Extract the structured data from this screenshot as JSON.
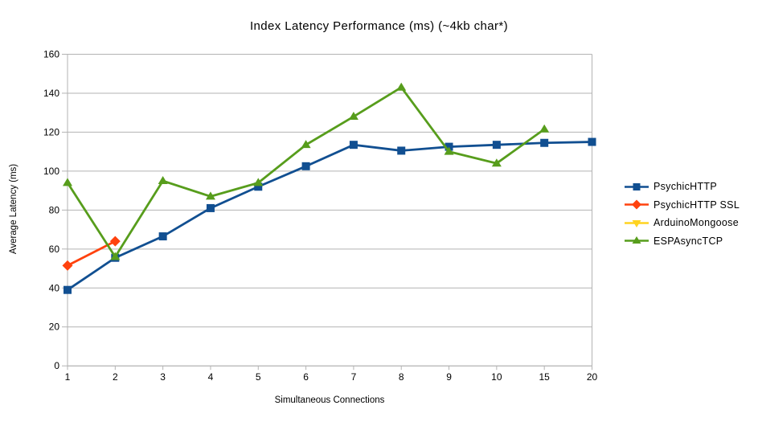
{
  "chart_data": {
    "type": "line",
    "title": "Index Latency Performance (ms) (~4kb char*)",
    "xlabel": "Simultaneous Connections",
    "ylabel": "Average Latency (ms)",
    "categories": [
      "1",
      "2",
      "3",
      "4",
      "5",
      "6",
      "7",
      "8",
      "9",
      "10",
      "15",
      "20"
    ],
    "ylim": [
      0,
      160
    ],
    "ytick_step": 20,
    "yticks": [
      0,
      20,
      40,
      60,
      80,
      100,
      120,
      140,
      160
    ],
    "grid": "horizontal",
    "legend_position": "right",
    "background_color": "#ffffff",
    "axis_color": "#b3b3b3",
    "text_color": "#000000",
    "series": [
      {
        "name": "PsychicHTTP",
        "color": "#114f91",
        "marker": "square",
        "values": [
          39,
          55.5,
          66.5,
          81,
          92,
          102.5,
          113.5,
          110.5,
          112.5,
          113.5,
          114.5,
          115
        ]
      },
      {
        "name": "PsychicHTTP SSL",
        "color": "#ff420e",
        "marker": "diamond",
        "values": [
          51.5,
          64,
          null,
          null,
          null,
          null,
          null,
          null,
          null,
          null,
          null,
          null
        ]
      },
      {
        "name": "ArduinoMongoose",
        "color": "#ffd320",
        "marker": "triangle-down",
        "values": [
          null,
          null,
          null,
          null,
          null,
          null,
          null,
          null,
          null,
          null,
          null,
          null
        ]
      },
      {
        "name": "ESPAsyncTCP",
        "color": "#579d1c",
        "marker": "triangle-up",
        "values": [
          94,
          56,
          95,
          87,
          94,
          113.5,
          128,
          143,
          110,
          104,
          121.5,
          null
        ]
      }
    ]
  }
}
